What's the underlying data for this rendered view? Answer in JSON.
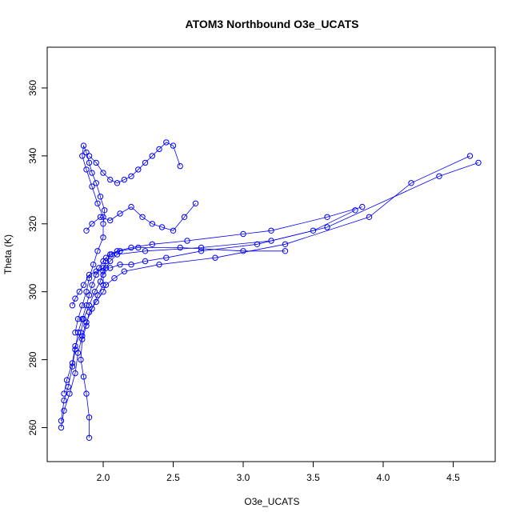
{
  "chart_data": {
    "type": "line",
    "title": "ATOM3 Northbound O3e_UCATS",
    "xlabel": "O3e_UCATS",
    "ylabel": "Theta (K)",
    "xlim": [
      1.6,
      4.8
    ],
    "ylim": [
      250,
      372
    ],
    "xticks": [
      2.0,
      2.5,
      3.0,
      3.5,
      4.0,
      4.5
    ],
    "xtick_labels": [
      "2.0",
      "2.5",
      "3.0",
      "3.5",
      "4.0",
      "4.5"
    ],
    "yticks": [
      260,
      280,
      300,
      320,
      340,
      360
    ],
    "ytick_labels": [
      "260",
      "280",
      "300",
      "320",
      "340",
      "360"
    ],
    "grid": false,
    "series": [
      {
        "color": "#0000ff",
        "marker": "open-circle",
        "x": [
          1.7,
          1.72,
          1.75,
          1.78,
          1.8,
          1.82,
          1.85,
          1.88,
          1.9,
          1.92,
          1.95,
          1.97,
          2.0,
          2.02,
          2.05,
          2.1,
          2.2,
          2.35,
          2.6,
          3.0,
          3.2,
          3.6,
          3.85
        ],
        "y": [
          262,
          268,
          272,
          278,
          283,
          288,
          292,
          296,
          299,
          302,
          305,
          307,
          309,
          310,
          311,
          312,
          313,
          314,
          315,
          317,
          318,
          322,
          325
        ]
      },
      {
        "color": "#0000ff",
        "marker": "open-circle",
        "x": [
          1.9,
          1.9,
          1.88,
          1.86,
          1.84,
          1.85,
          1.88,
          1.9,
          1.95,
          2.0,
          2.02,
          2.08,
          2.15,
          2.4,
          2.8,
          3.3,
          3.9,
          4.2,
          4.62
        ],
        "y": [
          257,
          263,
          270,
          275,
          280,
          286,
          290,
          294,
          297,
          300,
          302,
          304,
          306,
          308,
          310,
          314,
          322,
          332,
          340
        ]
      },
      {
        "color": "#0000ff",
        "marker": "open-circle",
        "x": [
          1.7,
          1.72,
          1.76,
          1.8,
          1.82,
          1.85,
          1.88,
          1.92,
          1.96,
          2.0,
          2.0,
          2.02,
          2.05,
          2.1,
          2.3,
          2.7,
          3.2,
          3.6,
          4.4,
          4.68
        ],
        "y": [
          260,
          265,
          270,
          276,
          282,
          287,
          291,
          295,
          299,
          302,
          305,
          307,
          309,
          311,
          312,
          313,
          315,
          319,
          334,
          338
        ]
      },
      {
        "color": "#0000ff",
        "marker": "open-circle",
        "x": [
          1.72,
          1.74,
          1.78,
          1.8,
          1.84,
          1.86,
          1.9,
          1.94,
          1.98,
          2.0,
          2.02,
          2.06,
          2.12,
          2.25,
          2.55,
          3.0,
          3.3
        ],
        "y": [
          270,
          274,
          279,
          284,
          288,
          292,
          296,
          300,
          303,
          306,
          309,
          311,
          312,
          313,
          313,
          312,
          312
        ]
      },
      {
        "color": "#0000ff",
        "marker": "open-circle",
        "x": [
          1.8,
          1.82,
          1.85,
          1.88,
          1.9,
          1.93,
          1.96,
          2.0,
          2.0,
          2.01,
          1.98,
          1.95,
          1.92,
          1.9,
          1.88,
          1.86,
          1.85,
          1.88,
          1.92,
          1.96,
          2.0
        ],
        "y": [
          288,
          292,
          296,
          300,
          304,
          308,
          312,
          316,
          320,
          324,
          328,
          332,
          335,
          338,
          341,
          343,
          340,
          336,
          331,
          326,
          322
        ]
      },
      {
        "color": "#0000ff",
        "marker": "open-circle",
        "x": [
          1.9,
          1.95,
          2.0,
          2.05,
          2.1,
          2.15,
          2.2,
          2.25,
          2.3,
          2.35,
          2.4,
          2.45,
          2.5,
          2.55
        ],
        "y": [
          340,
          338,
          335,
          333,
          332,
          333,
          334,
          336,
          338,
          340,
          342,
          344,
          343,
          337
        ]
      },
      {
        "color": "#0000ff",
        "marker": "open-circle",
        "x": [
          1.88,
          1.92,
          1.98,
          2.05,
          2.12,
          2.2,
          2.28,
          2.35,
          2.42,
          2.5,
          2.58,
          2.66
        ],
        "y": [
          318,
          320,
          322,
          321,
          323,
          325,
          322,
          320,
          319,
          318,
          322,
          326
        ]
      },
      {
        "color": "#0000ff",
        "marker": "open-circle",
        "x": [
          1.78,
          1.8,
          1.83,
          1.86,
          1.9,
          1.95,
          2.0,
          2.05,
          2.12,
          2.2,
          2.3,
          2.45,
          2.7,
          3.1,
          3.5,
          3.8
        ],
        "y": [
          296,
          298,
          300,
          302,
          305,
          306,
          307,
          307,
          308,
          308,
          309,
          310,
          312,
          314,
          318,
          324
        ]
      }
    ]
  }
}
